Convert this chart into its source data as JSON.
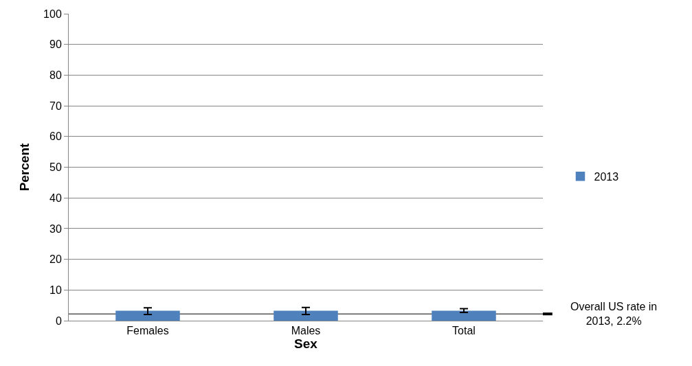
{
  "chart_data": {
    "type": "bar",
    "xlabel": "Sex",
    "ylabel": "Percent",
    "categories": [
      "Females",
      "Males",
      "Total"
    ],
    "series": [
      {
        "name": "2013",
        "color": "#4f81bd",
        "values": [
          3.1,
          3.1,
          3.1
        ],
        "errors": [
          [
            2.0,
            4.2
          ],
          [
            2.0,
            4.3
          ],
          [
            2.7,
            3.9
          ]
        ]
      }
    ],
    "ylim": [
      0,
      100
    ],
    "yticks": [
      0,
      10,
      20,
      30,
      40,
      50,
      60,
      70,
      80,
      90,
      100
    ],
    "grid": "y",
    "legend": "right",
    "ref_lines": [
      {
        "axis": "y",
        "value": 2.2,
        "label": "Overall US rate in 2013, 2.2%",
        "color": "#000000"
      }
    ]
  }
}
